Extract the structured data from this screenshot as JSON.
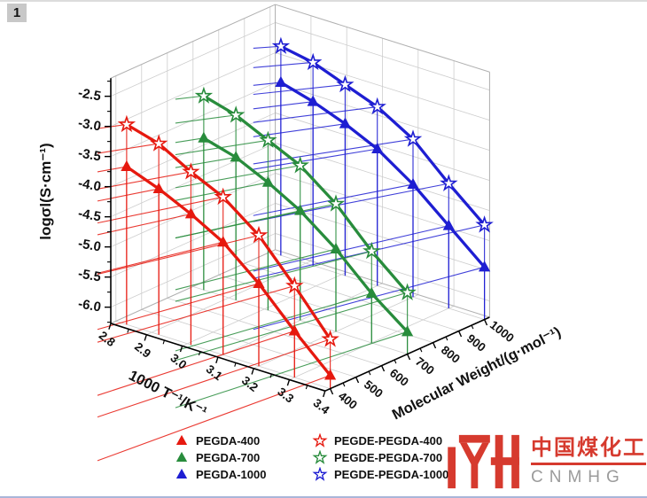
{
  "page": {
    "badge": "1"
  },
  "chart_data": {
    "type": "line",
    "subtype": "3d-scatter-lines-with-drop-lines",
    "title": "",
    "axes": {
      "x": {
        "label": "1000 T⁻¹/K⁻¹",
        "range": [
          2.8,
          3.4
        ],
        "ticks": [
          2.8,
          2.9,
          3.0,
          3.1,
          3.2,
          3.3,
          3.4
        ],
        "tick_labels": [
          "2.8",
          "2.9",
          "3.0",
          "3.1",
          "3.2",
          "3.3",
          "3.4"
        ]
      },
      "y": {
        "label": "Molecular Weight/(g·mol⁻¹)",
        "range": [
          380,
          1020
        ],
        "ticks": [
          400,
          500,
          600,
          700,
          800,
          900,
          1000
        ],
        "tick_labels": [
          "400",
          "500",
          "600",
          "700",
          "800",
          "900",
          "1000"
        ]
      },
      "z": {
        "label": "logσl(S·cm⁻¹)",
        "range": [
          -6.27,
          -2.2
        ],
        "ticks": [
          -6.0,
          -5.5,
          -5.0,
          -4.5,
          -4.0,
          -3.5,
          -3.0,
          -2.5
        ],
        "tick_labels": [
          "-6.0",
          "-5.5",
          "-5.0",
          "-4.5",
          "-4.0",
          "-3.5",
          "-3.0",
          "-2.5"
        ]
      }
    },
    "grid": true,
    "x_values": [
      2.83,
      2.92,
      3.01,
      3.1,
      3.2,
      3.3,
      3.4
    ],
    "series": [
      {
        "name": "PEGDA-400",
        "mw": 400,
        "color": "#e6190f",
        "marker": "triangle",
        "values": [
          -3.65,
          -3.85,
          -4.1,
          -4.4,
          -4.9,
          -5.5,
          -6.05
        ]
      },
      {
        "name": "PEGDA-700",
        "mw": 700,
        "color": "#288c3c",
        "marker": "triangle",
        "values": [
          -3.75,
          -3.9,
          -4.15,
          -4.45,
          -4.9,
          -5.45,
          -5.9
        ]
      },
      {
        "name": "PEGDA-1000",
        "mw": 1000,
        "color": "#1e1ed2",
        "marker": "triangle",
        "values": [
          -3.4,
          -3.55,
          -3.75,
          -4.0,
          -4.4,
          -4.9,
          -5.4
        ]
      },
      {
        "name": "PEGDE-PEGDA-400",
        "mw": 400,
        "color": "#e6190f",
        "marker": "star",
        "values": [
          -2.95,
          -3.1,
          -3.4,
          -3.65,
          -4.1,
          -4.75,
          -5.45
        ]
      },
      {
        "name": "PEGDE-PEGDA-700",
        "mw": 700,
        "color": "#288c3c",
        "marker": "star",
        "values": [
          -3.05,
          -3.2,
          -3.45,
          -3.7,
          -4.15,
          -4.75,
          -5.25
        ]
      },
      {
        "name": "PEGDE-PEGDA-1000",
        "mw": 1000,
        "color": "#1e1ed2",
        "marker": "star",
        "values": [
          -2.8,
          -2.9,
          -3.1,
          -3.3,
          -3.65,
          -4.2,
          -4.7
        ]
      }
    ],
    "legend": {
      "position": "bottom",
      "columns": [
        [
          "PEGDA-400",
          "PEGDA-700",
          "PEGDA-1000"
        ],
        [
          "PEGDE-PEGDA-400",
          "PEGDE-PEGDA-700",
          "PEGDE-PEGDA-1000"
        ]
      ]
    }
  },
  "logo": {
    "cjk": "中国煤化工",
    "latin": "CNMHG",
    "red": "#d63a2e",
    "gray": "#9b9b9b"
  }
}
